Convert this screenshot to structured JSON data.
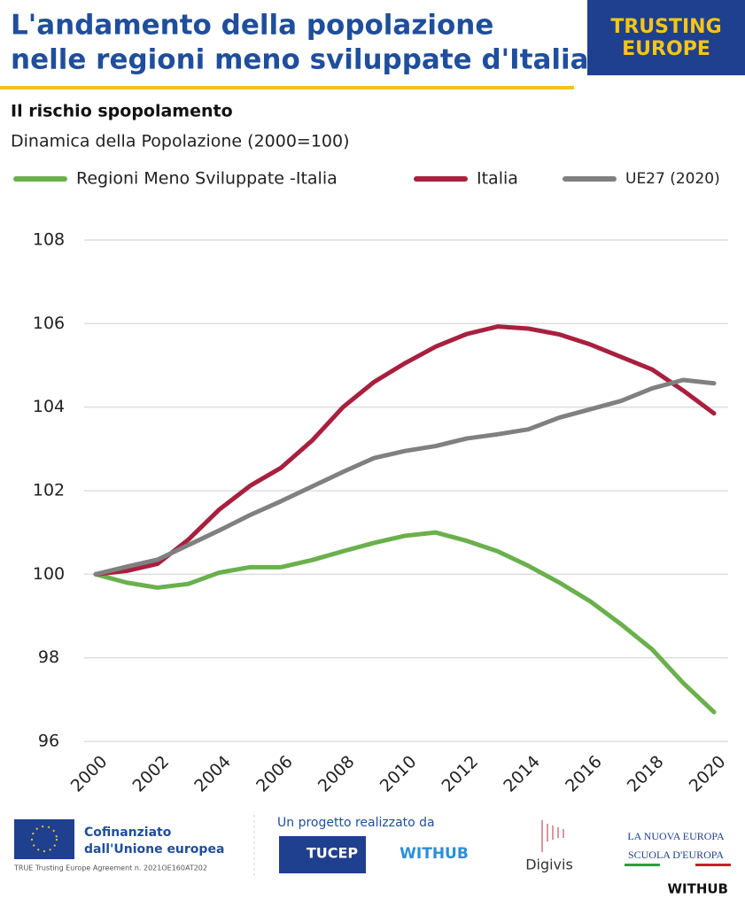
{
  "header": {
    "title_lines": [
      "L'andamento della popolazione",
      "nelle regioni meno sviluppate d'Italia"
    ],
    "logo_lines": [
      "TRUSTING",
      "EUROPE"
    ]
  },
  "chart_data": {
    "type": "line",
    "title": "Il rischio spopolamento",
    "subtitle": "Dinamica della Popolazione (2000=100)",
    "x": [
      2000,
      2001,
      2002,
      2003,
      2004,
      2005,
      2006,
      2007,
      2008,
      2009,
      2010,
      2011,
      2012,
      2013,
      2014,
      2015,
      2016,
      2017,
      2018,
      2019,
      2020
    ],
    "xlim": [
      2000,
      2020
    ],
    "xticks": [
      2000,
      2002,
      2004,
      2006,
      2008,
      2010,
      2012,
      2014,
      2016,
      2018,
      2020
    ],
    "ylim": [
      96,
      108
    ],
    "yticks": [
      96,
      98,
      100,
      102,
      104,
      106,
      108
    ],
    "grid": true,
    "series": [
      {
        "name": "Regioni Meno Sviluppate -Italia",
        "color": "#6ab04c",
        "values": [
          100,
          99.8,
          99.68,
          99.77,
          100.04,
          100.17,
          100.17,
          100.34,
          100.55,
          100.75,
          100.92,
          101.0,
          100.8,
          100.55,
          100.2,
          99.8,
          99.35,
          98.8,
          98.2,
          97.4,
          96.7
        ]
      },
      {
        "name": "Italia",
        "color": "#a8203e",
        "values": [
          100,
          100.08,
          100.25,
          100.83,
          101.55,
          102.12,
          102.55,
          103.2,
          104.0,
          104.6,
          105.05,
          105.45,
          105.75,
          105.93,
          105.88,
          105.74,
          105.5,
          105.2,
          104.9,
          104.4,
          103.85
        ]
      },
      {
        "name": "UE27 (2020)",
        "color": "#808080",
        "values": [
          100,
          100.18,
          100.35,
          100.7,
          101.05,
          101.42,
          101.75,
          102.1,
          102.45,
          102.78,
          102.95,
          103.07,
          103.25,
          103.35,
          103.47,
          103.75,
          103.95,
          104.15,
          104.45,
          104.65,
          104.57
        ]
      }
    ]
  },
  "footer": {
    "eu_lines": [
      "Cofinanziato",
      "dall'Unione europea"
    ],
    "agreement": "TRUE Trusting Europe Agreement n. 2021OE160AT202",
    "project": "Un progetto realizzato da",
    "partners": [
      "TUCEP",
      "WITHUB",
      "Digivis"
    ],
    "nuova_europa": "LA NUOVA EUROPA",
    "scuola": "SCUOLA D'EUROPA",
    "brand": "WITHUB"
  }
}
